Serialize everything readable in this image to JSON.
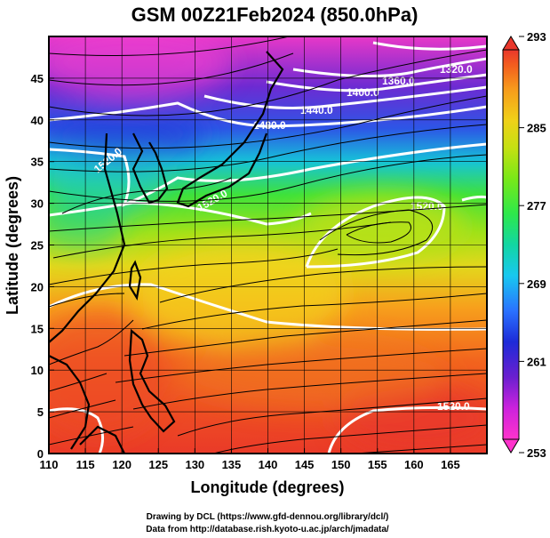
{
  "title": "GSM 00Z21Feb2024 (850.0hPa)",
  "map": {
    "xlabel": "Longitude (degrees)",
    "ylabel": "Latitude  (degrees)",
    "xlim": [
      110,
      170
    ],
    "ylim": [
      0,
      50
    ],
    "x_ticks": [
      "110",
      "115",
      "120",
      "125",
      "130",
      "135",
      "140",
      "145",
      "150",
      "155",
      "160",
      "165"
    ],
    "y_ticks": [
      "0",
      "5",
      "10",
      "15",
      "20",
      "25",
      "30",
      "35",
      "40",
      "45"
    ],
    "grid": true,
    "colorbar": {
      "ticks": [
        "293",
        "285",
        "277",
        "269",
        "261",
        "253"
      ],
      "range": [
        253,
        293
      ],
      "colors": [
        "#ff33cc",
        "#cc22dd",
        "#6a1fd0",
        "#1d2bd8",
        "#2a72ff",
        "#18c8f0",
        "#12d6a2",
        "#2ee84a",
        "#7ae818",
        "#c6e012",
        "#f0d018",
        "#f79a1c",
        "#f35e1e",
        "#e9372c"
      ]
    },
    "contour_labels": [
      "1320.0",
      "1360.0",
      "1400.0",
      "1440.0",
      "1480.0",
      "1520.0",
      "1520.0",
      "1520.0",
      "1520.0"
    ]
  },
  "credits": {
    "line1": "Drawing by DCL (https://www.gfd-dennou.org/library/dcl/)",
    "line2": "Data from http://database.rish.kyoto-u.ac.jp/arch/jmadata/"
  }
}
